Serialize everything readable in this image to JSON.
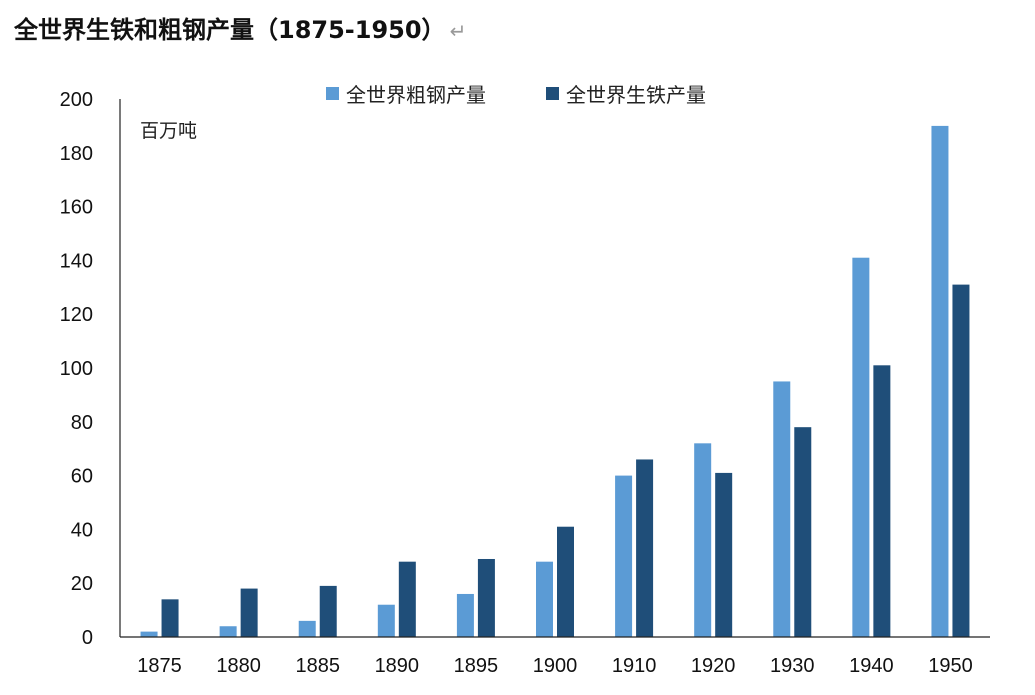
{
  "title": "全世界生铁和粗钢产量（1875-1950）",
  "title_mark": "↵",
  "chart_data": {
    "type": "bar",
    "title": "全世界生铁和粗钢产量（1875-1950）",
    "unit_label": "百万吨",
    "categories": [
      "1875",
      "1880",
      "1885",
      "1890",
      "1895",
      "1900",
      "1910",
      "1920",
      "1930",
      "1940",
      "1950"
    ],
    "series": [
      {
        "name": "全世界粗钢产量",
        "color": "#5b9bd5",
        "values": [
          2,
          4,
          6,
          12,
          16,
          28,
          60,
          72,
          95,
          141,
          190
        ]
      },
      {
        "name": "全世界生铁产量",
        "color": "#1f4e79",
        "values": [
          14,
          18,
          19,
          28,
          29,
          41,
          66,
          61,
          78,
          101,
          131
        ]
      }
    ],
    "ylim": [
      0,
      200
    ],
    "yticks": [
      0,
      20,
      40,
      60,
      80,
      100,
      120,
      140,
      160,
      180,
      200
    ],
    "grid": false,
    "legend_position": "top"
  }
}
